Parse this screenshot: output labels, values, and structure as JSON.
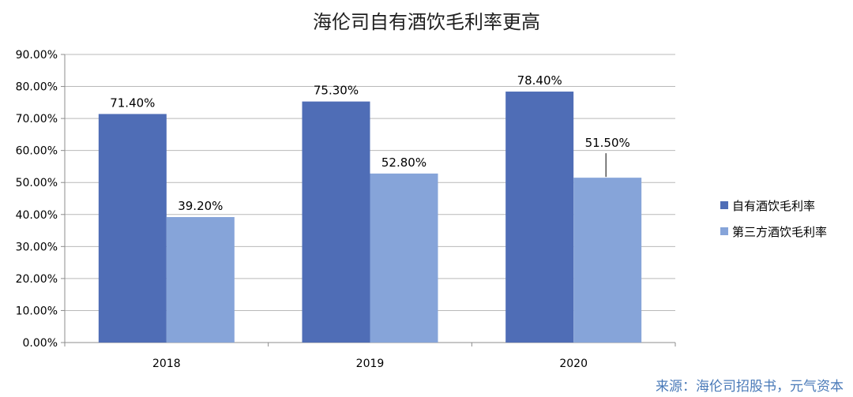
{
  "chart_data": {
    "type": "bar",
    "title": "海伦司自有酒饮毛利率更高",
    "categories": [
      "2018",
      "2019",
      "2020"
    ],
    "series": [
      {
        "name": "自有酒饮毛利率",
        "values": [
          71.4,
          75.3,
          78.4
        ],
        "labels": [
          "71.40%",
          "75.30%",
          "78.40%"
        ],
        "color": "#4f6db6"
      },
      {
        "name": "第三方酒饮毛利率",
        "values": [
          39.2,
          52.8,
          51.5
        ],
        "labels": [
          "39.20%",
          "52.80%",
          "51.50%"
        ],
        "color": "#86a4d9"
      }
    ],
    "ylim": [
      0,
      90
    ],
    "yticks": [
      0,
      10,
      20,
      30,
      40,
      50,
      60,
      70,
      80,
      90
    ],
    "ytick_labels": [
      "0.00%",
      "10.00%",
      "20.00%",
      "30.00%",
      "40.00%",
      "50.00%",
      "60.00%",
      "70.00%",
      "80.00%",
      "90.00%"
    ],
    "grid": true,
    "legend_position": "right"
  },
  "source": "来源：海伦司招股书，元气资本",
  "colors": {
    "grid": "#b9b9b9",
    "axis": "#8c8c8c",
    "source": "#4a7ab8"
  }
}
